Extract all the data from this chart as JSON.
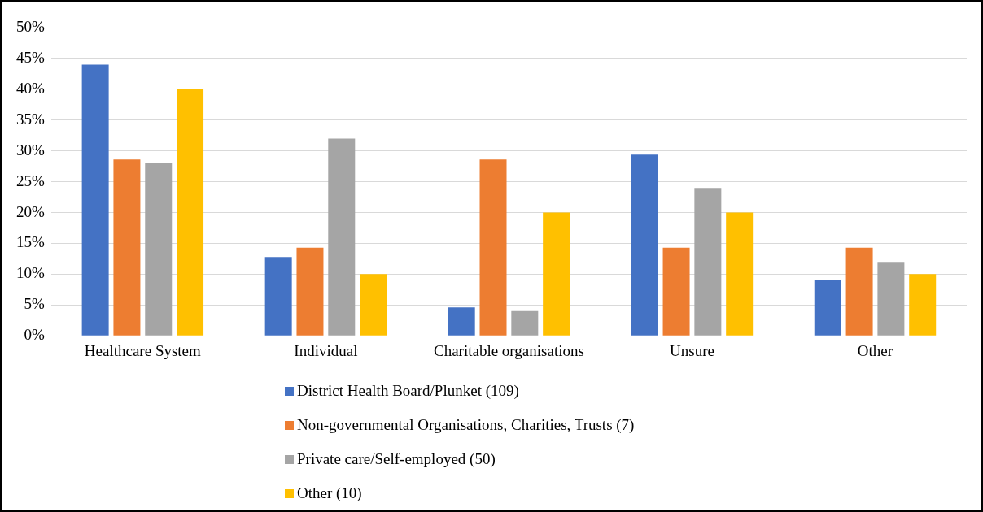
{
  "chart_data": {
    "type": "bar",
    "categories": [
      "Healthcare System",
      "Individual",
      "Charitable organisations",
      "Unsure",
      "Other"
    ],
    "series": [
      {
        "name": "District Health Board/Plunket (109)",
        "color": "#4472c4",
        "values": [
          44,
          12.8,
          4.6,
          29.4,
          9.1
        ]
      },
      {
        "name": "Non-governmental Organisations, Charities, Trusts (7)",
        "color": "#ed7d31",
        "values": [
          28.6,
          14.3,
          28.6,
          14.3,
          14.3
        ]
      },
      {
        "name": "Private care/Self-employed (50)",
        "color": "#a5a5a5",
        "values": [
          28,
          32,
          4,
          24,
          12
        ]
      },
      {
        "name": "Other (10)",
        "color": "#ffc000",
        "values": [
          40,
          10,
          20,
          20,
          10
        ]
      }
    ],
    "ylim": [
      0,
      50
    ],
    "yticks": [
      {
        "value": 0,
        "label": "0%"
      },
      {
        "value": 5,
        "label": "5%"
      },
      {
        "value": 10,
        "label": "10%"
      },
      {
        "value": 15,
        "label": "15%"
      },
      {
        "value": 20,
        "label": "20%"
      },
      {
        "value": 25,
        "label": "25%"
      },
      {
        "value": 30,
        "label": "30%"
      },
      {
        "value": 35,
        "label": "35%"
      },
      {
        "value": 40,
        "label": "40%"
      },
      {
        "value": 45,
        "label": "45%"
      },
      {
        "value": 50,
        "label": "50%"
      }
    ],
    "grid": "y",
    "legend": "bottom"
  }
}
